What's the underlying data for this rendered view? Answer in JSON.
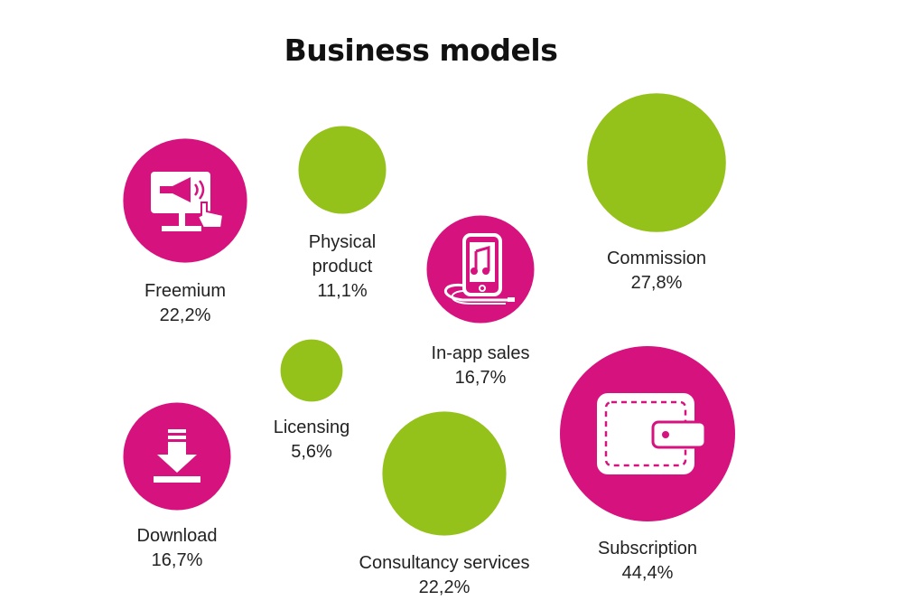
{
  "colors": {
    "magenta": "#d6127f",
    "green": "#94c11a",
    "icon": "#ffffff",
    "text": "#222222"
  },
  "chart_data": {
    "type": "bubble",
    "title": "Business models",
    "unit": "%",
    "items": [
      {
        "label": "Freemium",
        "value": 22.2,
        "value_label": "22,2%",
        "color": "magenta",
        "icon": "billboard-megaphone-icon"
      },
      {
        "label": "Physical product",
        "label_lines": [
          "Physical",
          "product"
        ],
        "value": 11.1,
        "value_label": "11,1%",
        "color": "green",
        "icon": ""
      },
      {
        "label": "In-app sales",
        "value": 16.7,
        "value_label": "16,7%",
        "color": "magenta",
        "icon": "phone-music-icon"
      },
      {
        "label": "Commission",
        "value": 27.8,
        "value_label": "27,8%",
        "color": "green",
        "icon": ""
      },
      {
        "label": "Licensing",
        "value": 5.6,
        "value_label": "5,6%",
        "color": "green",
        "icon": ""
      },
      {
        "label": "Download",
        "value": 16.7,
        "value_label": "16,7%",
        "color": "magenta",
        "icon": "download-arrow-icon"
      },
      {
        "label": "Consultancy services",
        "value": 22.2,
        "value_label": "22,2%",
        "color": "green",
        "icon": ""
      },
      {
        "label": "Subscription",
        "value": 44.4,
        "value_label": "44,4%",
        "color": "magenta",
        "icon": "wallet-icon"
      }
    ]
  }
}
